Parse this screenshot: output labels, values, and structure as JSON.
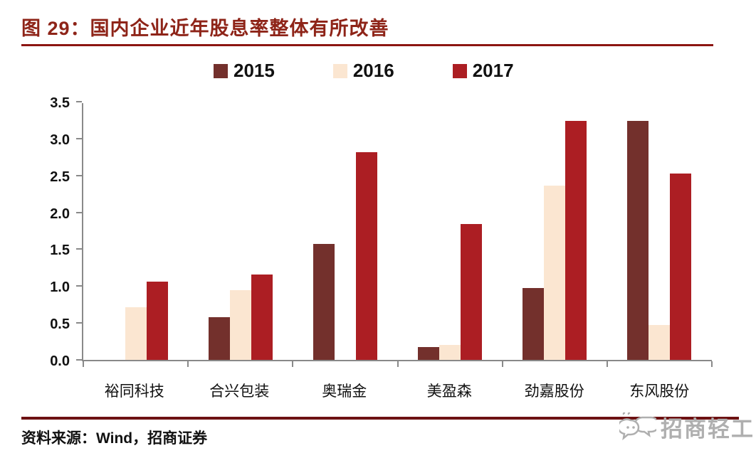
{
  "title": "图 29：国内企业近年股息率整体有所改善",
  "source_note": "资料来源：Wind，招商证券",
  "watermark": {
    "text": "招商轻工",
    "icon": "chat-bubbles-icon"
  },
  "colors": {
    "title_text": "#8E2418",
    "title_rule": "#8C1511",
    "footer_rule": "#6D1112",
    "axis": "#898989",
    "watermark": "#AFAFAF",
    "series_2015": "#73302C",
    "series_2016": "#FBE6D1",
    "series_2017": "#AC1E23"
  },
  "chart_data": {
    "type": "bar",
    "title": "图 29：国内企业近年股息率整体有所改善",
    "categories": [
      "裕同科技",
      "合兴包装",
      "奥瑞金",
      "美盈森",
      "劲嘉股份",
      "东风股份"
    ],
    "series": [
      {
        "name": "2015",
        "color": "#73302C",
        "values": [
          null,
          0.58,
          1.58,
          0.17,
          0.98,
          3.26
        ]
      },
      {
        "name": "2016",
        "color": "#FBE6D1",
        "values": [
          0.72,
          0.95,
          null,
          0.2,
          2.38,
          0.48
        ]
      },
      {
        "name": "2017",
        "color": "#AC1E23",
        "values": [
          1.07,
          1.16,
          2.83,
          1.85,
          3.26,
          2.54
        ]
      }
    ],
    "xlabel": "",
    "ylabel": "",
    "ylim": [
      0,
      3.5
    ],
    "ytick_step": 0.5,
    "ytick_labels": [
      "0.0",
      "0.5",
      "1.0",
      "1.5",
      "2.0",
      "2.5",
      "3.0",
      "3.5"
    ],
    "grid": false,
    "legend_position": "top"
  }
}
